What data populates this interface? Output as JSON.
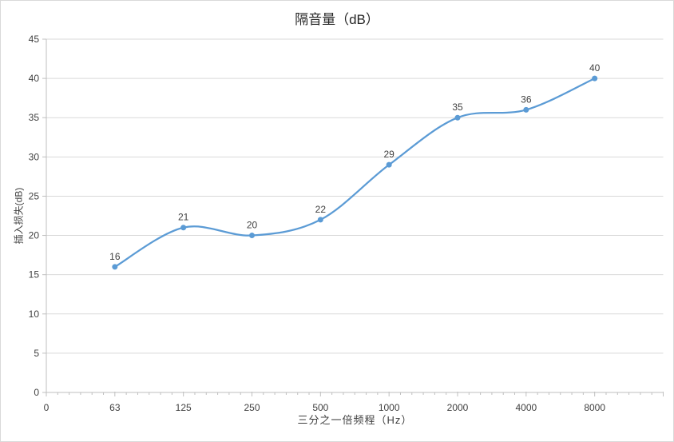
{
  "chart_data": {
    "type": "line",
    "smooth": true,
    "title": "隔音量（dB）",
    "xlabel": "三分之一倍频程（Hz）",
    "ylabel": "插入损失(dB)",
    "categories": [
      "63",
      "125",
      "250",
      "500",
      "1000",
      "2000",
      "4000",
      "8000"
    ],
    "values": [
      16,
      21,
      20,
      22,
      29,
      35,
      36,
      40
    ],
    "data_labels": [
      "16",
      "21",
      "20",
      "22",
      "29",
      "35",
      "36",
      "40"
    ],
    "x_origin_tick_label": "0",
    "y_ticks": [
      0,
      5,
      10,
      15,
      20,
      25,
      30,
      35,
      40,
      45
    ],
    "ylim": [
      0,
      45
    ],
    "y_tick_step": 5,
    "x_scale": "log2-equal-spacing",
    "grid": "horizontal",
    "legend": "none",
    "marker": "circle",
    "colors": {
      "line": "#5b9bd5",
      "marker": "#5b9bd5",
      "gridline": "#d9d9d9",
      "axis_line": "#bfbfbf",
      "tick_label": "#404040",
      "data_label": "#404040",
      "title": "#262626"
    }
  }
}
